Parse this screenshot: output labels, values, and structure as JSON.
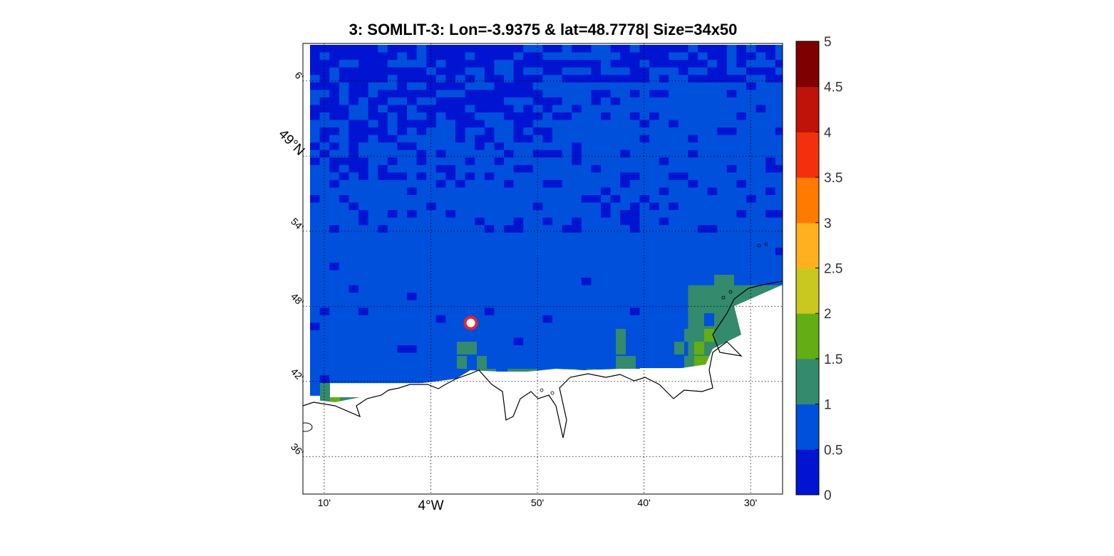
{
  "title": "3: SOMLIT-3: Lon=-3.9375 & lat=48.7778| Size=34x50",
  "map": {
    "lon_range": [
      -4.2,
      -3.45
    ],
    "lat_range": [
      48.55,
      49.15
    ],
    "station": {
      "lon": -3.9375,
      "lat": 48.7778,
      "fill": "#ffffff",
      "ring": "#e8262b"
    },
    "lon_ticks": [
      {
        "lon": -4.1667,
        "label": "10'"
      },
      {
        "lon": -4.0,
        "label": "4°W"
      },
      {
        "lon": -3.8333,
        "label": "50'"
      },
      {
        "lon": -3.6667,
        "label": "40'"
      },
      {
        "lon": -3.5,
        "label": "30'"
      }
    ],
    "lat_ticks": [
      {
        "lat": 49.1,
        "label": "6'"
      },
      {
        "lat": 49.0,
        "label": "49°N"
      },
      {
        "lat": 48.9,
        "label": "54'"
      },
      {
        "lat": 48.8,
        "label": "48'"
      },
      {
        "lat": 48.7,
        "label": "42'"
      },
      {
        "lat": 48.6,
        "label": "36'"
      }
    ],
    "grid_style": "dotted"
  },
  "colorbar": {
    "min": 0,
    "max": 5,
    "tick_labels": [
      "0",
      "0.5",
      "1",
      "1.5",
      "2",
      "2.5",
      "3",
      "3.5",
      "4",
      "4.5",
      "5"
    ],
    "colors": [
      "#0014d2",
      "#0050dc",
      "#338a6c",
      "#62ae14",
      "#c8c820",
      "#ffb021",
      "#ff7a00",
      "#f2300d",
      "#bf1208",
      "#7f0000"
    ]
  }
}
